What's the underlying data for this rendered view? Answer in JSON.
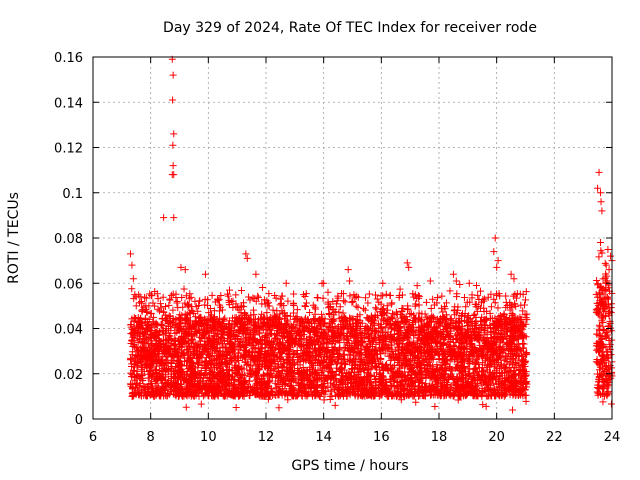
{
  "chart_data": {
    "type": "scatter",
    "title": "Day 329 of 2024, Rate Of TEC Index for receiver rode",
    "xlabel": "GPS time / hours",
    "ylabel": "ROTI / TECUs",
    "xlim": [
      6,
      24
    ],
    "ylim": [
      0,
      0.16
    ],
    "xticks": [
      6,
      8,
      10,
      12,
      14,
      16,
      18,
      20,
      22,
      24
    ],
    "xtick_labels": [
      "6",
      "8",
      "10",
      "12",
      "14",
      "16",
      "18",
      "20",
      "22",
      "24"
    ],
    "yticks": [
      0,
      0.02,
      0.04,
      0.06,
      0.08,
      0.1,
      0.12,
      0.14,
      0.16
    ],
    "ytick_labels": [
      "0",
      "0.02",
      "0.04",
      "0.06",
      "0.08",
      "0.1",
      "0.12",
      "0.14",
      "0.16"
    ],
    "grid": true,
    "marker": "+",
    "color": "#ff0000",
    "segments": [
      {
        "x_start": 7.3,
        "x_end": 21.05,
        "typical_min": 0.01,
        "typical_max": 0.045,
        "notes": "dense band"
      },
      {
        "x_start": 23.45,
        "x_end": 24.0,
        "typical_min": 0.01,
        "typical_max": 0.06,
        "notes": "dense band"
      }
    ],
    "points": [
      [
        7.3,
        0.073
      ],
      [
        7.35,
        0.068
      ],
      [
        7.4,
        0.062
      ],
      [
        7.45,
        0.055
      ],
      [
        7.5,
        0.05
      ],
      [
        8.45,
        0.089
      ],
      [
        8.8,
        0.089
      ],
      [
        8.75,
        0.159
      ],
      [
        8.78,
        0.152
      ],
      [
        8.76,
        0.141
      ],
      [
        8.8,
        0.126
      ],
      [
        8.77,
        0.121
      ],
      [
        8.78,
        0.112
      ],
      [
        8.8,
        0.108
      ],
      [
        8.75,
        0.108
      ],
      [
        9.05,
        0.067
      ],
      [
        9.2,
        0.066
      ],
      [
        9.9,
        0.064
      ],
      [
        11.3,
        0.073
      ],
      [
        11.35,
        0.071
      ],
      [
        11.65,
        0.064
      ],
      [
        12.7,
        0.06
      ],
      [
        13.3,
        0.055
      ],
      [
        14.0,
        0.06
      ],
      [
        14.15,
        0.056
      ],
      [
        14.85,
        0.066
      ],
      [
        14.9,
        0.061
      ],
      [
        15.05,
        0.055
      ],
      [
        16.05,
        0.06
      ],
      [
        16.9,
        0.069
      ],
      [
        16.95,
        0.067
      ],
      [
        17.7,
        0.061
      ],
      [
        18.5,
        0.064
      ],
      [
        18.6,
        0.061
      ],
      [
        19.05,
        0.06
      ],
      [
        19.3,
        0.059
      ],
      [
        19.95,
        0.08
      ],
      [
        19.9,
        0.074
      ],
      [
        20.05,
        0.07
      ],
      [
        20.0,
        0.067
      ],
      [
        20.5,
        0.064
      ],
      [
        20.6,
        0.062
      ],
      [
        23.5,
        0.102
      ],
      [
        23.55,
        0.109
      ],
      [
        23.6,
        0.1
      ],
      [
        23.62,
        0.096
      ],
      [
        23.65,
        0.092
      ],
      [
        23.6,
        0.078
      ],
      [
        23.8,
        0.068
      ],
      [
        23.95,
        0.072
      ],
      [
        23.9,
        0.066
      ],
      [
        24.0,
        0.07
      ],
      [
        20.55,
        0.004
      ],
      [
        12.45,
        0.005
      ],
      [
        14.4,
        0.006
      ]
    ]
  }
}
